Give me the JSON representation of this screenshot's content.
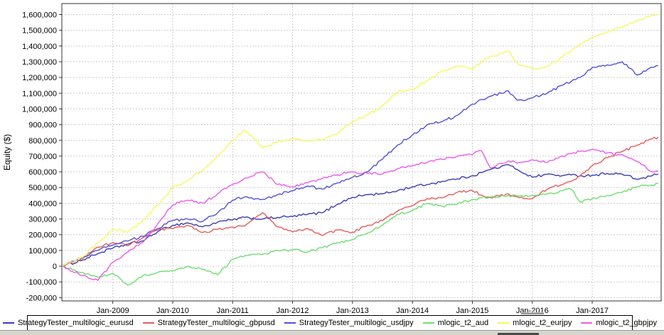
{
  "window": {
    "bottom_strip_color": "#d6d6ce"
  },
  "chart_data": {
    "type": "line",
    "title": "",
    "xlabel": "",
    "ylabel": "Equity ($)",
    "grid": "dashed",
    "grid_color": "#cccccc",
    "axis_color": "#333333",
    "legend_position": "bottom",
    "x_range": [
      2008.15,
      2018.15
    ],
    "y_range": [
      -221000,
      1670000
    ],
    "x_ticks": [
      {
        "year": 2009,
        "label": "Jan-2009"
      },
      {
        "year": 2010,
        "label": "Jan-2010"
      },
      {
        "year": 2011,
        "label": "Jan-2011"
      },
      {
        "year": 2012,
        "label": "Jan-2012"
      },
      {
        "year": 2013,
        "label": "Jan-2013"
      },
      {
        "year": 2014,
        "label": "Jan-2014"
      },
      {
        "year": 2015,
        "label": "Jan-2015"
      },
      {
        "year": 2016,
        "label": "Jan-2016"
      },
      {
        "year": 2017,
        "label": "Jan-2017"
      }
    ],
    "y_ticks": [
      {
        "v": 1600000,
        "label": "1,600,000"
      },
      {
        "v": 1500000,
        "label": "1,500,000"
      },
      {
        "v": 1400000,
        "label": "1,400,000"
      },
      {
        "v": 1300000,
        "label": "1,300,000"
      },
      {
        "v": 1200000,
        "label": "1,200,000"
      },
      {
        "v": 1100000,
        "label": "1,100,000"
      },
      {
        "v": 1000000,
        "label": "1,000,000"
      },
      {
        "v": 900000,
        "label": "900,000"
      },
      {
        "v": 800000,
        "label": "800,000"
      },
      {
        "v": 700000,
        "label": "700,000"
      },
      {
        "v": 600000,
        "label": "600,000"
      },
      {
        "v": 500000,
        "label": "500,000"
      },
      {
        "v": 400000,
        "label": "400,000"
      },
      {
        "v": 300000,
        "label": "300,000"
      },
      {
        "v": 200000,
        "label": "200,000"
      },
      {
        "v": 100000,
        "label": "100,000"
      },
      {
        "v": 0,
        "label": "0"
      },
      {
        "v": -100000,
        "label": "-100,000"
      },
      {
        "v": -200000,
        "label": "-200,000"
      }
    ],
    "x": [
      2008.15,
      2008.5,
      2008.75,
      2009.0,
      2009.25,
      2009.5,
      2009.75,
      2010.0,
      2010.25,
      2010.5,
      2010.75,
      2011.0,
      2011.2,
      2011.5,
      2011.75,
      2012.0,
      2012.25,
      2012.5,
      2012.75,
      2013.0,
      2013.25,
      2013.5,
      2013.75,
      2014.0,
      2014.25,
      2014.5,
      2014.75,
      2015.0,
      2015.15,
      2015.3,
      2015.6,
      2015.75,
      2016.0,
      2016.25,
      2016.5,
      2016.65,
      2016.8,
      2017.0,
      2017.25,
      2017.5,
      2017.75,
      2018.0,
      2018.1
    ],
    "series": [
      {
        "name": "StrategyTester_multilogic_eurusd",
        "color": "#3a3ab8",
        "values": [
          0,
          40000,
          80000,
          115000,
          140000,
          160000,
          220000,
          260000,
          275000,
          250000,
          280000,
          295000,
          310000,
          300000,
          310000,
          316000,
          330000,
          340000,
          395000,
          438000,
          455000,
          460000,
          480000,
          505000,
          520000,
          540000,
          555000,
          575000,
          595000,
          615000,
          645000,
          615000,
          566000,
          585000,
          575000,
          580000,
          575000,
          578000,
          590000,
          585000,
          552000,
          575000,
          585000
        ]
      },
      {
        "name": "StrategyTester_multilogic_gbpusd",
        "color": "#e45c5c",
        "values": [
          0,
          50000,
          120000,
          150000,
          130000,
          180000,
          230000,
          238000,
          260000,
          215000,
          235000,
          248000,
          255000,
          340000,
          250000,
          217000,
          240000,
          195000,
          230000,
          215000,
          260000,
          290000,
          350000,
          385000,
          430000,
          435000,
          470000,
          480000,
          452000,
          435000,
          460000,
          440000,
          430000,
          490000,
          520000,
          540000,
          575000,
          640000,
          690000,
          730000,
          770000,
          810000,
          820000
        ]
      },
      {
        "name": "StrategyTester_multilogic_usdjpy",
        "color": "#5151d9",
        "values": [
          0,
          60000,
          100000,
          135000,
          160000,
          190000,
          240000,
          290000,
          300000,
          285000,
          340000,
          420000,
          440000,
          425000,
          455000,
          480000,
          510000,
          490000,
          530000,
          565000,
          600000,
          680000,
          770000,
          835000,
          900000,
          920000,
          960000,
          1030000,
          1060000,
          1080000,
          1115000,
          1055000,
          1070000,
          1100000,
          1150000,
          1175000,
          1200000,
          1264000,
          1280000,
          1300000,
          1215000,
          1265000,
          1275000
        ]
      },
      {
        "name": "mlogic_t2_aud",
        "color": "#6ede6e",
        "values": [
          0,
          -40000,
          -70000,
          -45000,
          -120000,
          -60000,
          -40000,
          -30000,
          0,
          -20000,
          -55000,
          45000,
          65000,
          75000,
          100000,
          104000,
          90000,
          117000,
          150000,
          170000,
          210000,
          260000,
          330000,
          355000,
          400000,
          380000,
          395000,
          425000,
          435000,
          440000,
          450000,
          445000,
          450000,
          460000,
          480000,
          490000,
          408000,
          430000,
          450000,
          470000,
          505000,
          515000,
          525000
        ]
      },
      {
        "name": "mlogic_t2_eurjpy",
        "color": "#f7f75e",
        "values": [
          0,
          60000,
          150000,
          235000,
          215000,
          290000,
          390000,
          500000,
          545000,
          610000,
          700000,
          800000,
          866000,
          754000,
          790000,
          810000,
          800000,
          805000,
          840000,
          920000,
          960000,
          1020000,
          1110000,
          1125000,
          1180000,
          1240000,
          1273000,
          1256000,
          1300000,
          1330000,
          1368000,
          1290000,
          1255000,
          1270000,
          1330000,
          1370000,
          1410000,
          1454000,
          1490000,
          1520000,
          1560000,
          1595000,
          1600000
        ]
      },
      {
        "name": "mlogic_t2_gbpjpy",
        "color": "#ea5cea",
        "values": [
          0,
          -60000,
          -90000,
          25000,
          90000,
          150000,
          270000,
          390000,
          420000,
          400000,
          460000,
          519000,
          560000,
          600000,
          520000,
          505000,
          530000,
          560000,
          580000,
          600000,
          590000,
          587000,
          620000,
          641000,
          660000,
          680000,
          700000,
          710000,
          735000,
          625000,
          670000,
          655000,
          677000,
          660000,
          700000,
          715000,
          730000,
          745000,
          720000,
          710000,
          665000,
          600000,
          605000
        ]
      }
    ]
  }
}
